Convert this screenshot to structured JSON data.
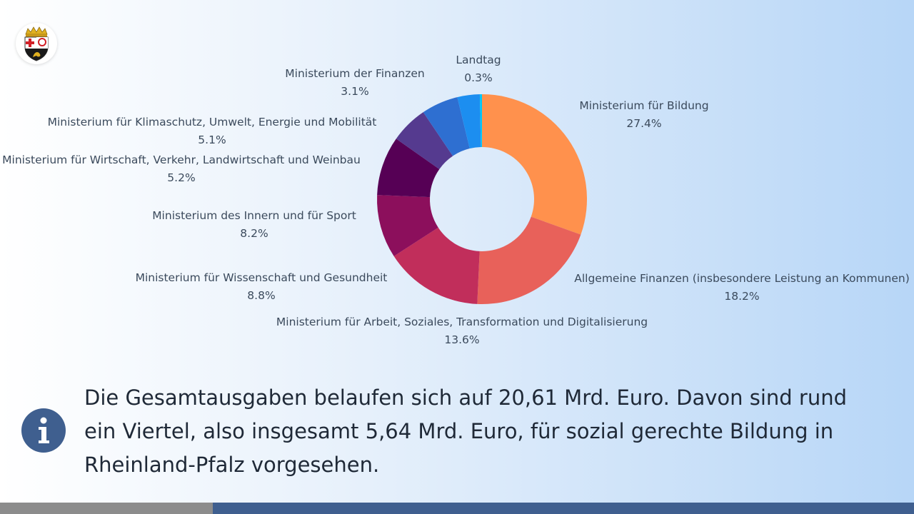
{
  "chart_data": {
    "type": "pie",
    "donut": true,
    "labels": [
      "Ministerium für Bildung",
      "Allgemeine Finanzen (insbesondere Leistung an Kommunen)",
      "Ministerium für Arbeit, Soziales, Transformation und Digitalisierung",
      "Ministerium für Wissenschaft und Gesundheit",
      "Ministerium des Innern und für Sport",
      "Ministerium für Wirtschaft, Verkehr, Landwirtschaft und Weinbau",
      "Ministerium für Klimaschutz, Umwelt, Energie und Mobilität",
      "Ministerium der Finanzen",
      "Landtag"
    ],
    "values": [
      27.4,
      18.2,
      13.6,
      8.8,
      8.2,
      5.2,
      5.1,
      3.1,
      0.3
    ],
    "value_labels": [
      "27.4%",
      "18.2%",
      "13.6%",
      "8.8%",
      "8.2%",
      "5.2%",
      "5.1%",
      "3.1%",
      "0.3%"
    ],
    "colors": [
      "#ff914d",
      "#e8615a",
      "#c12e5b",
      "#8c0f5c",
      "#560055",
      "#553a8f",
      "#2e6fd1",
      "#1c8ef0",
      "#00c8f8",
      "#2a86e0",
      "#3c63c9",
      "#242a5a"
    ],
    "title": "",
    "legend": "none"
  },
  "page": {
    "note": "Die Gesamtausgaben belaufen sich auf 20,61 Mrd. Euro. Davon sind rund ein Viertel, also insgesamt 5,64 Mrd. Euro, für sozial gerechte Bildung in Rheinland-Pfalz vorgesehen.",
    "logo_icon": "rheinland-pfalz-coat-of-arms-icon",
    "info_icon": "info-icon"
  }
}
